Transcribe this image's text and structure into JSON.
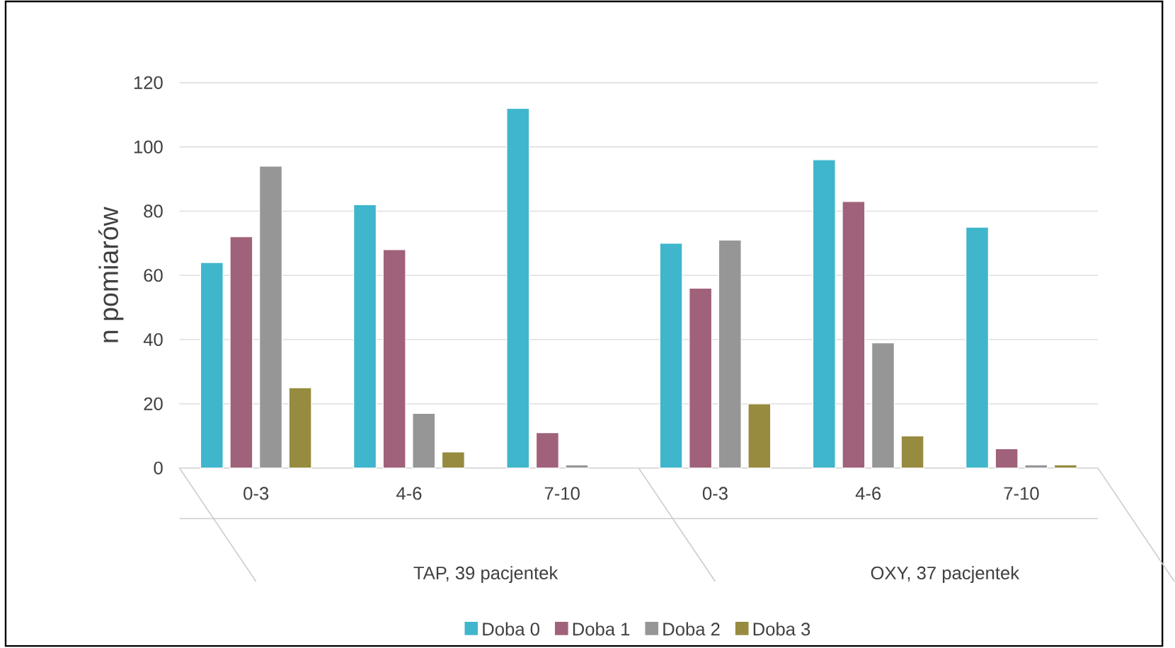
{
  "chart_data": {
    "type": "bar",
    "ylabel": "n pomiarów",
    "categories": [
      "0-3",
      "4-6",
      "7-10",
      "0-3",
      "4-6",
      "7-10"
    ],
    "series": [
      {
        "name": "Doba 0",
        "color": "#3fb6cc",
        "values": [
          64,
          82,
          112,
          70,
          96,
          75
        ]
      },
      {
        "name": "Doba 1",
        "color": "#a0617a",
        "values": [
          72,
          68,
          11,
          56,
          83,
          6
        ]
      },
      {
        "name": "Doba 2",
        "color": "#969696",
        "values": [
          94,
          17,
          1,
          71,
          39,
          1
        ]
      },
      {
        "name": "Doba 3",
        "color": "#968b3f",
        "values": [
          25,
          5,
          null,
          20,
          10,
          1
        ]
      }
    ],
    "ylim": [
      0,
      120
    ],
    "yticks": [
      0,
      20,
      40,
      60,
      80,
      100,
      120
    ],
    "grid": "y",
    "legend": "bottom",
    "annotations": [
      "TAP, 39 pacjentek",
      "OXY, 37 pacjentek"
    ]
  }
}
